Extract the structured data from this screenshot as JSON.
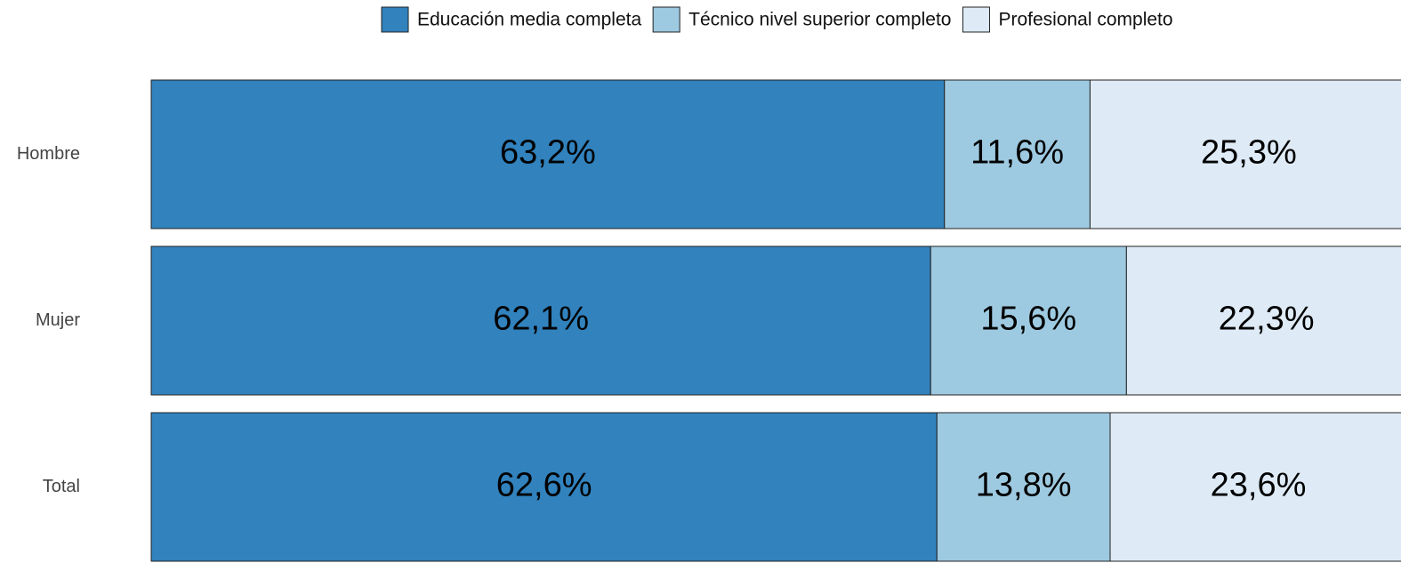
{
  "chart_data": {
    "type": "stacked_barh",
    "categories": [
      "Hombre",
      "Mujer",
      "Total"
    ],
    "series": [
      {
        "name": "Educación media completa",
        "color": "#3182bd",
        "values": [
          63.2,
          62.1,
          62.6
        ],
        "value_labels": [
          "63,2%",
          "62,1%",
          "62,6%"
        ]
      },
      {
        "name": "Técnico nivel superior completo",
        "color": "#9ecae1",
        "values": [
          11.6,
          15.6,
          13.8
        ],
        "value_labels": [
          "11,6%",
          "15,6%",
          "13,8%"
        ]
      },
      {
        "name": "Profesional completo",
        "color": "#deebf7",
        "values": [
          25.3,
          22.3,
          23.6
        ],
        "value_labels": [
          "25,3%",
          "22,3%",
          "23,6%"
        ]
      }
    ],
    "legend": "top"
  }
}
